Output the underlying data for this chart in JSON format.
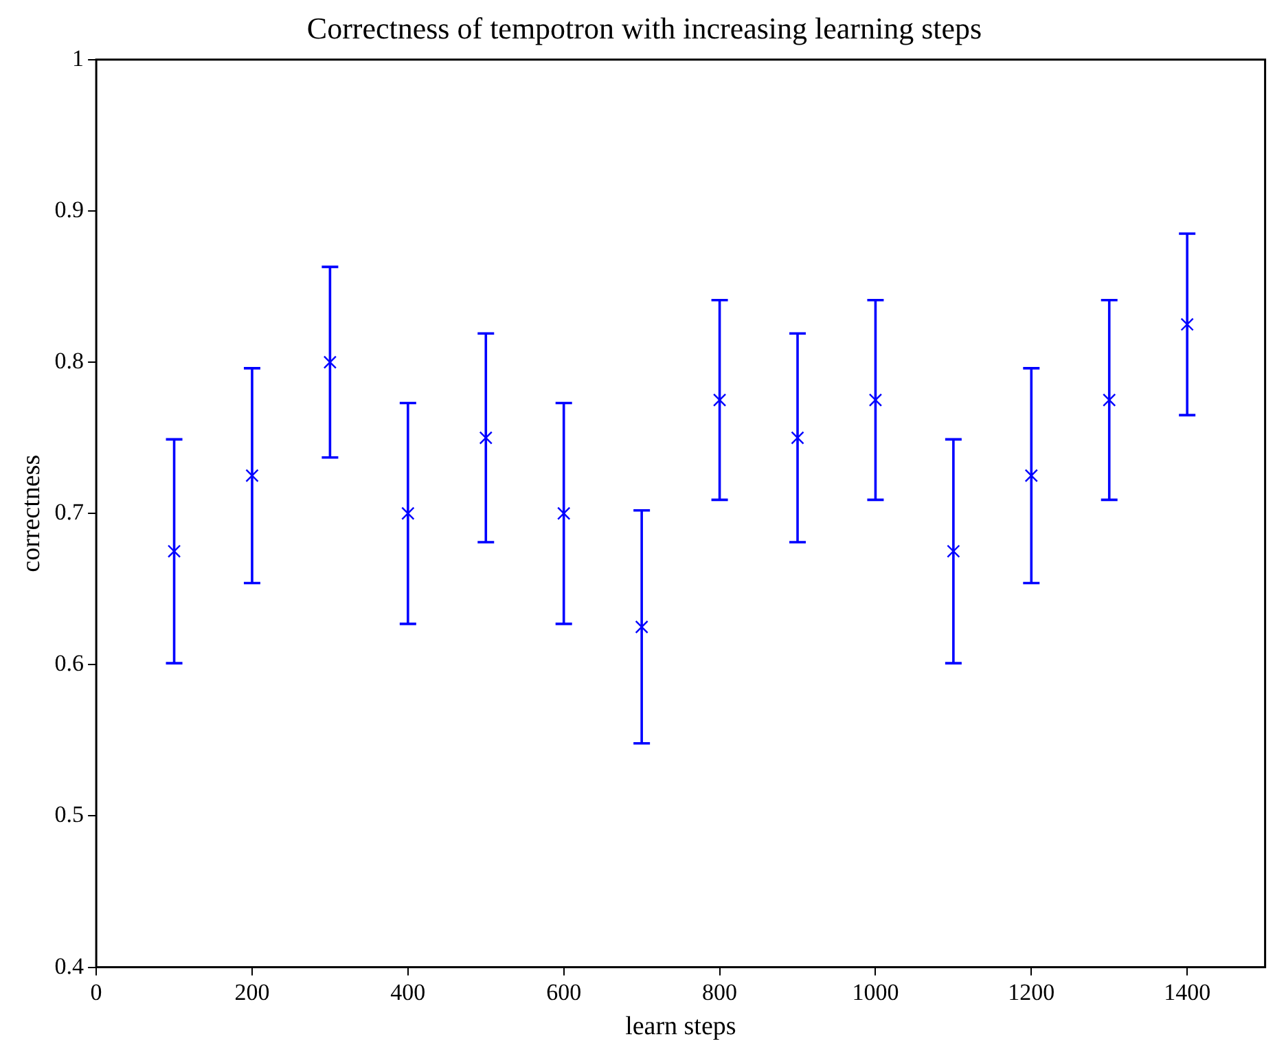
{
  "chart_data": {
    "type": "scatter",
    "title": "Correctness of tempotron with increasing learning steps",
    "xlabel": "learn steps",
    "ylabel": "correctness",
    "x": [
      100,
      200,
      300,
      400,
      500,
      600,
      700,
      800,
      900,
      1000,
      1100,
      1200,
      1300,
      1400
    ],
    "series": [
      {
        "color": "#0000ff",
        "values": [
          0.675,
          0.725,
          0.8,
          0.7,
          0.75,
          0.7,
          0.625,
          0.775,
          0.75,
          0.775,
          0.675,
          0.725,
          0.775,
          0.825
        ],
        "errors": [
          0.074,
          0.071,
          0.063,
          0.073,
          0.069,
          0.073,
          0.077,
          0.066,
          0.069,
          0.066,
          0.074,
          0.071,
          0.066,
          0.06
        ]
      }
    ],
    "xlim": [
      0,
      1500
    ],
    "xticks": [
      0,
      200,
      400,
      600,
      800,
      1000,
      1200,
      1400
    ],
    "ylim": [
      0.4,
      1.0
    ],
    "yticks": [
      0.4,
      0.5,
      0.6,
      0.7,
      0.8,
      0.9,
      1.0
    ],
    "grid": false,
    "legend": false,
    "marker": "cross"
  }
}
